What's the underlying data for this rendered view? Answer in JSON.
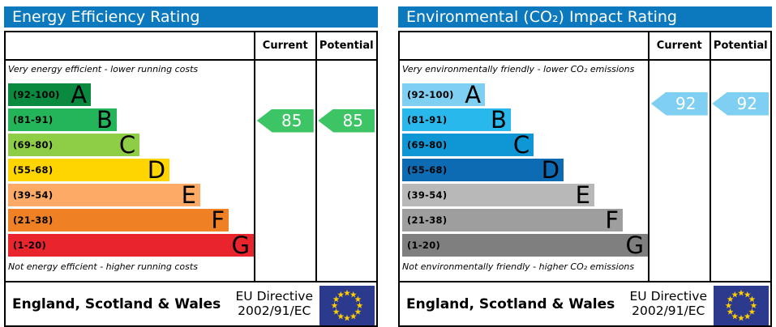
{
  "colors": {
    "panel_header_bg": "#0C79BE",
    "panel_header_text": "#FFFFFF",
    "border": "#000000",
    "eu_flag_bg": "#2B3A8C",
    "eu_flag_star": "#FFCC00",
    "arrow_text": "#FFFFFF"
  },
  "chart_data": [
    {
      "type": "bar",
      "orientation": "horizontal",
      "title": "Energy Efficiency Rating",
      "categories": [
        "A (92-100)",
        "B (81-91)",
        "C (69-80)",
        "D (55-68)",
        "E (39-54)",
        "F (21-38)",
        "G (1-20)"
      ],
      "values": [
        33.7,
        44.2,
        53.5,
        65.7,
        78.2,
        89.8,
        100
      ],
      "values_unit": "schematic band length, % of rating column",
      "bar_colors": [
        "#0A8A3E",
        "#24B45A",
        "#8DCE46",
        "#FFD500",
        "#FCAA65",
        "#EF8023",
        "#E9242C"
      ],
      "markers": {
        "current": 85,
        "potential": 85,
        "current_band": "B",
        "potential_band": "B"
      },
      "legend": [
        "Current",
        "Potential"
      ],
      "annotations": [
        "Very energy efficient - lower running costs",
        "Not energy efficient - higher running costs"
      ]
    },
    {
      "type": "bar",
      "orientation": "horizontal",
      "title": "Environmental (CO₂) Impact Rating",
      "categories": [
        "A (92-100)",
        "B (81-91)",
        "C (69-80)",
        "D (55-68)",
        "E (39-54)",
        "F (21-38)",
        "G (1-20)"
      ],
      "values": [
        33.7,
        44.2,
        53.5,
        65.7,
        78.2,
        89.8,
        100
      ],
      "values_unit": "schematic band length, % of rating column",
      "bar_colors": [
        "#7ECFF2",
        "#29B8EB",
        "#0E96D5",
        "#0C6BB2",
        "#B8B8B8",
        "#9E9E9E",
        "#7F7F7F"
      ],
      "markers": {
        "current": 92,
        "potential": 92,
        "current_band": "A",
        "potential_band": "A"
      },
      "legend": [
        "Current",
        "Potential"
      ],
      "annotations": [
        "Very environmentally friendly - lower CO₂ emissions",
        "Not environmentally friendly - higher CO₂ emissions"
      ]
    }
  ],
  "panels": [
    {
      "title": "Energy Efficiency Rating",
      "columns": {
        "current": "Current",
        "potential": "Potential"
      },
      "top_note": "Very energy efficient - lower running costs",
      "bottom_note": "Not energy efficient - higher running costs",
      "bands": [
        {
          "letter": "A",
          "range": "(92-100)",
          "lo": 92,
          "hi": 100,
          "color": "#0A8A3E",
          "width_pct": 33.7
        },
        {
          "letter": "B",
          "range": "(81-91)",
          "lo": 81,
          "hi": 91,
          "color": "#24B45A",
          "width_pct": 44.2
        },
        {
          "letter": "C",
          "range": "(69-80)",
          "lo": 69,
          "hi": 80,
          "color": "#8DCE46",
          "width_pct": 53.5
        },
        {
          "letter": "D",
          "range": "(55-68)",
          "lo": 55,
          "hi": 68,
          "color": "#FFD500",
          "width_pct": 65.7
        },
        {
          "letter": "E",
          "range": "(39-54)",
          "lo": 39,
          "hi": 54,
          "color": "#FCAA65",
          "width_pct": 78.2
        },
        {
          "letter": "F",
          "range": "(21-38)",
          "lo": 21,
          "hi": 38,
          "color": "#EF8023",
          "width_pct": 89.8
        },
        {
          "letter": "G",
          "range": "(1-20)",
          "lo": 1,
          "hi": 20,
          "color": "#E9242C",
          "width_pct": 100
        }
      ],
      "current": {
        "value": 85,
        "arrow_color": "#3DC464"
      },
      "potential": {
        "value": 85,
        "arrow_color": "#3DC464"
      },
      "footer": {
        "region": "England, Scotland & Wales",
        "directive_line1": "EU Directive",
        "directive_line2": "2002/91/EC"
      }
    },
    {
      "title": "Environmental (CO₂) Impact Rating",
      "columns": {
        "current": "Current",
        "potential": "Potential"
      },
      "top_note": "Very environmentally friendly - lower CO₂ emissions",
      "bottom_note": "Not environmentally friendly - higher CO₂ emissions",
      "bands": [
        {
          "letter": "A",
          "range": "(92-100)",
          "lo": 92,
          "hi": 100,
          "color": "#7ECFF2",
          "width_pct": 33.7
        },
        {
          "letter": "B",
          "range": "(81-91)",
          "lo": 81,
          "hi": 91,
          "color": "#29B8EB",
          "width_pct": 44.2
        },
        {
          "letter": "C",
          "range": "(69-80)",
          "lo": 69,
          "hi": 80,
          "color": "#0E96D5",
          "width_pct": 53.5
        },
        {
          "letter": "D",
          "range": "(55-68)",
          "lo": 55,
          "hi": 68,
          "color": "#0C6BB2",
          "width_pct": 65.7
        },
        {
          "letter": "E",
          "range": "(39-54)",
          "lo": 39,
          "hi": 54,
          "color": "#B8B8B8",
          "width_pct": 78.2
        },
        {
          "letter": "F",
          "range": "(21-38)",
          "lo": 21,
          "hi": 38,
          "color": "#9E9E9E",
          "width_pct": 89.8
        },
        {
          "letter": "G",
          "range": "(1-20)",
          "lo": 1,
          "hi": 20,
          "color": "#7F7F7F",
          "width_pct": 100
        }
      ],
      "current": {
        "value": 92,
        "arrow_color": "#7ECFF2"
      },
      "potential": {
        "value": 92,
        "arrow_color": "#7ECFF2"
      },
      "footer": {
        "region": "England, Scotland & Wales",
        "directive_line1": "EU Directive",
        "directive_line2": "2002/91/EC"
      }
    }
  ]
}
